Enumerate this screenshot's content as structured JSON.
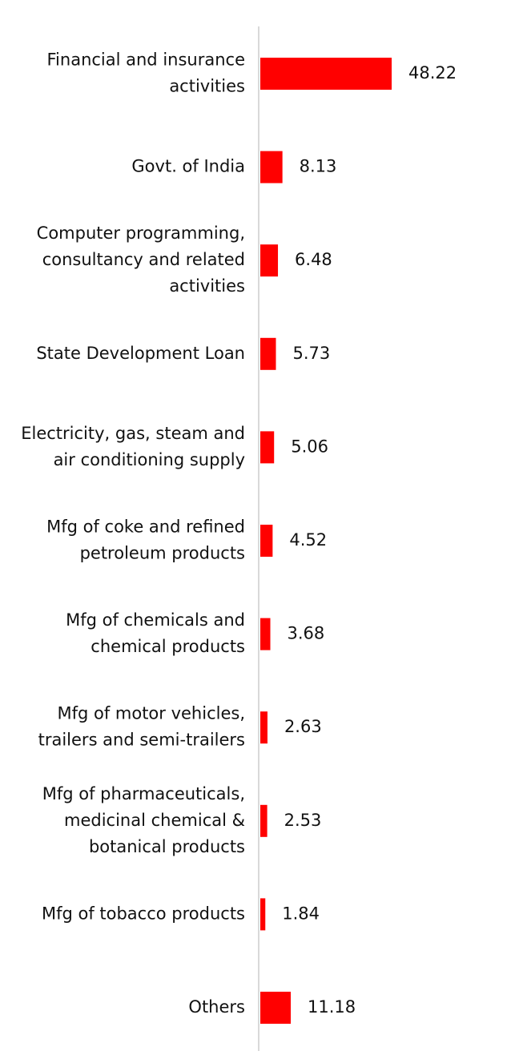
{
  "chart_data": {
    "type": "bar",
    "orientation": "horizontal",
    "categories": [
      "Financial and insurance activities",
      "Govt. of India",
      "Computer programming, consultancy and related activities",
      "State Development Loan",
      "Electricity, gas, steam and air conditioning supply",
      "Mfg of coke and refined petroleum products",
      "Mfg of chemicals and chemical products",
      "Mfg of motor vehicles, trailers and semi-trailers",
      "Mfg of pharmaceuticals, medicinal chemical & botanical products",
      "Mfg of tobacco products",
      "Others"
    ],
    "category_label_lines": [
      [
        "Financial and insurance",
        "activities"
      ],
      [
        "Govt. of India"
      ],
      [
        "Computer programming,",
        "consultancy and related",
        "activities"
      ],
      [
        "State Development Loan"
      ],
      [
        "Electricity, gas, steam and",
        "air conditioning supply"
      ],
      [
        "Mfg of coke and refined",
        "petroleum products"
      ],
      [
        "Mfg of chemicals and",
        "chemical products"
      ],
      [
        "Mfg of motor vehicles,",
        "trailers and semi-trailers"
      ],
      [
        "Mfg of pharmaceuticals,",
        "medicinal chemical &",
        "botanical products"
      ],
      [
        "Mfg of tobacco products"
      ],
      [
        "Others"
      ]
    ],
    "values": [
      48.22,
      8.13,
      6.48,
      5.73,
      5.06,
      4.52,
      3.68,
      2.63,
      2.53,
      1.84,
      11.18
    ],
    "value_labels": [
      "48.22",
      "8.13",
      "6.48",
      "5.73",
      "5.06",
      "4.52",
      "3.68",
      "2.63",
      "2.53",
      "1.84",
      "11.18"
    ],
    "title": "",
    "xlabel": "",
    "ylabel": "",
    "xlim": [
      0,
      48.22
    ],
    "grid": false,
    "legend": "none",
    "colors": {
      "bar": "#ff0000",
      "axis": "#d9d9d9",
      "text": "#111111"
    }
  }
}
